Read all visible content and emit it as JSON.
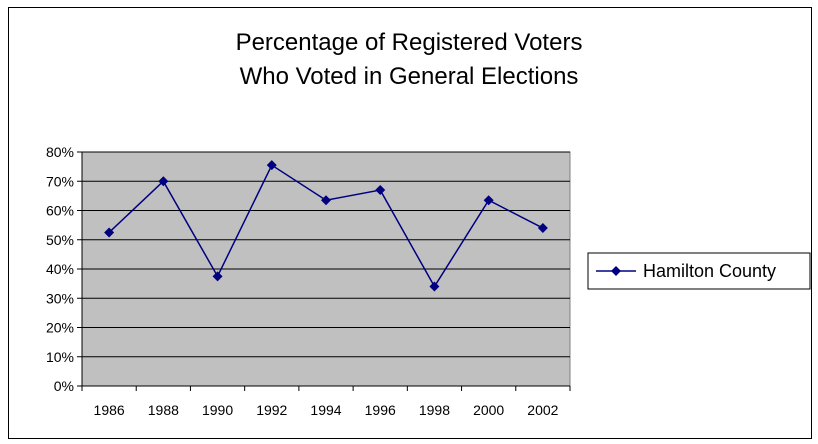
{
  "chart_data": {
    "type": "line",
    "title_lines": [
      "Percentage of Registered Voters",
      "Who Voted in General Elections"
    ],
    "categories": [
      "1986",
      "1988",
      "1990",
      "1992",
      "1994",
      "1996",
      "1998",
      "2000",
      "2002"
    ],
    "series": [
      {
        "name": "Hamilton County",
        "values": [
          52.5,
          70,
          37.5,
          75.5,
          63.5,
          67,
          34,
          63.5,
          54
        ]
      }
    ],
    "y_ticks": [
      "0%",
      "10%",
      "20%",
      "30%",
      "40%",
      "50%",
      "60%",
      "70%",
      "80%"
    ],
    "ylim": [
      0,
      80
    ],
    "y_unit": "%",
    "grid": true,
    "legend_position": "right",
    "colors": {
      "series": "#000080",
      "plot_background": "#C0C0C0",
      "gridline": "#000000"
    }
  }
}
